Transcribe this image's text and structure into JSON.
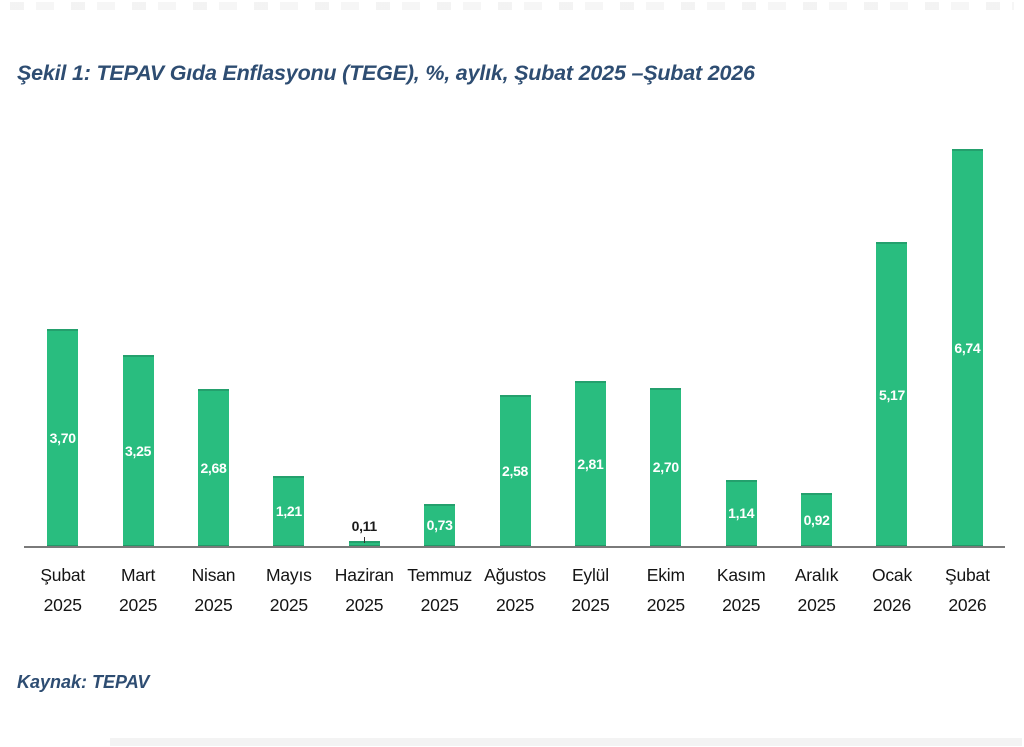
{
  "title": "Şekil 1: TEPAV Gıda Enflasyonu (TEGE), %, aylık, Şubat 2025 –Şubat 2026",
  "source": "Kaynak: TEPAV",
  "colors": {
    "bar": "#29bd7f",
    "title_text": "#2e4d72",
    "axis_line": "#7a7a7a",
    "label_in_bar": "#ffffff",
    "label_outside": "#1a1a1a"
  },
  "chart_data": {
    "type": "bar",
    "title": "Şekil 1: TEPAV Gıda Enflasyonu (TEGE), %, aylık, Şubat 2025 –Şubat 2026",
    "categories": [
      {
        "month": "Şubat",
        "year": "2025"
      },
      {
        "month": "Mart",
        "year": "2025"
      },
      {
        "month": "Nisan",
        "year": "2025"
      },
      {
        "month": "Mayıs",
        "year": "2025"
      },
      {
        "month": "Haziran",
        "year": "2025"
      },
      {
        "month": "Temmuz",
        "year": "2025"
      },
      {
        "month": "Ağustos",
        "year": "2025"
      },
      {
        "month": "Eylül",
        "year": "2025"
      },
      {
        "month": "Ekim",
        "year": "2025"
      },
      {
        "month": "Kasım",
        "year": "2025"
      },
      {
        "month": "Aralık",
        "year": "2025"
      },
      {
        "month": "Ocak",
        "year": "2026"
      },
      {
        "month": "Şubat",
        "year": "2026"
      }
    ],
    "values": [
      3.7,
      3.25,
      2.68,
      1.21,
      0.11,
      0.73,
      2.58,
      2.81,
      2.7,
      1.14,
      0.92,
      5.17,
      6.74
    ],
    "value_labels": [
      "3,70",
      "3,25",
      "2,68",
      "1,21",
      "0,11",
      "0,73",
      "2,58",
      "2,81",
      "2,70",
      "1,14",
      "0,92",
      "5,17",
      "6,74"
    ],
    "xlabel": "",
    "ylabel": "",
    "ylim": [
      0,
      7
    ],
    "grid": false,
    "legend": null,
    "source": "Kaynak: TEPAV"
  }
}
